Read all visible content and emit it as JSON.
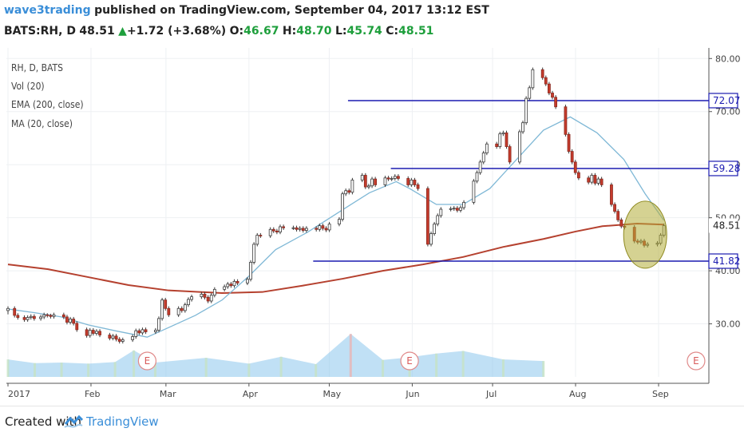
{
  "header": {
    "author": "wave3trading",
    "published": "published on TradingView.com, September 04, 2017 13:12 EST",
    "symbol": "BATS:RH, D",
    "last": "48.51",
    "arrow": "▲",
    "change": "+1.72 (+3.68%)",
    "o_label": "O:",
    "o_val": "46.67",
    "h_label": "H:",
    "h_val": "48.70",
    "l_label": "L:",
    "l_val": "45.74",
    "c_label": "C:",
    "c_val": "48.51"
  },
  "legend": [
    "RH, D, BATS",
    "Vol (20)",
    "EMA (200, close)",
    "MA (20, close)"
  ],
  "footer": {
    "created": "Created with",
    "brand": "TradingView"
  },
  "colors": {
    "up": "#ffffff",
    "down": "#c63b2c",
    "ema": "#b5412f",
    "ma": "#7fb8d6",
    "hline": "#1b1bb0",
    "circle": "#b2ad38",
    "volume": "#8dc6ec"
  },
  "chart_data": {
    "type": "candlestick",
    "ylim": [
      20,
      82
    ],
    "y_ticks": [
      30,
      40,
      50,
      60,
      70,
      80
    ],
    "y_tick_labels": [
      "30.00",
      "40.00",
      "50.00",
      "60.00",
      "70.00",
      "80.00"
    ],
    "x_labels": [
      "2017",
      "Feb",
      "Mar",
      "Apr",
      "May",
      "Jun",
      "Jul",
      "Aug",
      "Sep"
    ],
    "x_label_days": [
      0,
      31,
      59,
      90,
      120,
      151,
      181,
      212,
      243
    ],
    "days_total": 260,
    "price_levels": [
      72.07,
      59.28,
      41.82
    ],
    "price_level_labels": [
      "72.07",
      "59.28",
      "41.82"
    ],
    "last_price": 48.51,
    "last_price_label": "48.51",
    "earnings_label": "E",
    "earnings_days": [
      52,
      150,
      257
    ],
    "ema200": [
      [
        0,
        41.2
      ],
      [
        15,
        40.3
      ],
      [
        30,
        38.8
      ],
      [
        45,
        37.3
      ],
      [
        60,
        36.3
      ],
      [
        80,
        35.8
      ],
      [
        95,
        36.0
      ],
      [
        110,
        37.2
      ],
      [
        125,
        38.5
      ],
      [
        140,
        40.0
      ],
      [
        155,
        41.2
      ],
      [
        170,
        42.6
      ],
      [
        185,
        44.5
      ],
      [
        200,
        46.0
      ],
      [
        212,
        47.4
      ],
      [
        222,
        48.4
      ],
      [
        235,
        48.9
      ],
      [
        245,
        48.7
      ]
    ],
    "ma20": [
      [
        0,
        32.8
      ],
      [
        10,
        32.1
      ],
      [
        20,
        31.3
      ],
      [
        30,
        29.8
      ],
      [
        40,
        28.7
      ],
      [
        52,
        27.5
      ],
      [
        60,
        29.3
      ],
      [
        70,
        31.6
      ],
      [
        80,
        34.5
      ],
      [
        90,
        39.0
      ],
      [
        100,
        44.0
      ],
      [
        112,
        47.3
      ],
      [
        125,
        51.5
      ],
      [
        135,
        54.7
      ],
      [
        145,
        56.8
      ],
      [
        150,
        55.5
      ],
      [
        160,
        52.5
      ],
      [
        170,
        52.5
      ],
      [
        180,
        55.5
      ],
      [
        190,
        61.0
      ],
      [
        200,
        66.5
      ],
      [
        210,
        69.0
      ],
      [
        220,
        66.0
      ],
      [
        230,
        61.0
      ],
      [
        238,
        54.5
      ],
      [
        245,
        49.5
      ]
    ],
    "candles": [
      [
        0,
        32.5,
        32.9,
        31.8,
        33.3
      ],
      [
        2,
        32.9,
        31.6,
        31.2,
        33.3
      ],
      [
        3,
        31.6,
        31.2,
        30.8,
        32.0
      ],
      [
        5,
        31.2,
        30.8,
        30.4,
        31.6
      ],
      [
        6,
        30.8,
        31.2,
        30.4,
        31.6
      ],
      [
        7,
        31.2,
        31.4,
        30.8,
        31.8
      ],
      [
        8,
        31.4,
        31.0,
        30.6,
        31.8
      ],
      [
        10,
        31.0,
        31.3,
        30.6,
        31.7
      ],
      [
        11,
        31.3,
        31.7,
        30.9,
        32.1
      ],
      [
        12,
        31.7,
        31.6,
        31.2,
        32.0
      ],
      [
        13,
        31.6,
        31.4,
        31.0,
        31.9
      ],
      [
        14,
        31.4,
        31.7,
        31.0,
        32.1
      ],
      [
        17,
        31.7,
        31.3,
        30.9,
        32.1
      ],
      [
        18,
        31.3,
        30.3,
        29.9,
        31.7
      ],
      [
        19,
        30.3,
        30.9,
        29.9,
        31.3
      ],
      [
        20,
        30.9,
        30.1,
        29.7,
        31.3
      ],
      [
        21,
        30.1,
        28.9,
        28.5,
        30.5
      ],
      [
        24,
        28.9,
        27.8,
        27.4,
        29.3
      ],
      [
        25,
        27.8,
        28.8,
        27.4,
        29.2
      ],
      [
        26,
        28.8,
        28.2,
        27.8,
        29.2
      ],
      [
        27,
        28.2,
        28.6,
        27.8,
        29.0
      ],
      [
        28,
        28.6,
        27.9,
        27.5,
        29.0
      ],
      [
        31,
        27.9,
        27.3,
        26.9,
        28.3
      ],
      [
        32,
        27.3,
        27.7,
        26.9,
        28.1
      ],
      [
        33,
        27.7,
        27.1,
        26.7,
        28.1
      ],
      [
        34,
        27.1,
        26.7,
        26.3,
        27.5
      ],
      [
        35,
        26.7,
        27.0,
        26.3,
        27.4
      ],
      [
        38,
        27.0,
        27.6,
        26.6,
        28.0
      ],
      [
        39,
        27.6,
        28.7,
        27.2,
        29.1
      ],
      [
        40,
        28.7,
        28.3,
        27.9,
        29.1
      ],
      [
        41,
        28.3,
        28.9,
        27.9,
        29.3
      ],
      [
        42,
        28.9,
        28.5,
        28.1,
        29.3
      ],
      [
        45,
        28.5,
        28.8,
        28.1,
        29.2
      ],
      [
        46,
        28.8,
        31.0,
        28.4,
        31.4
      ],
      [
        47,
        31.0,
        34.5,
        30.6,
        34.9
      ],
      [
        48,
        34.5,
        32.9,
        32.5,
        34.9
      ],
      [
        49,
        32.9,
        31.7,
        31.3,
        33.3
      ],
      [
        52,
        31.7,
        32.9,
        31.3,
        33.3
      ],
      [
        53,
        32.9,
        32.5,
        32.1,
        33.3
      ],
      [
        54,
        32.5,
        33.6,
        32.1,
        34.0
      ],
      [
        55,
        33.6,
        34.6,
        33.2,
        35.0
      ],
      [
        56,
        34.6,
        35.1,
        34.2,
        35.5
      ],
      [
        59,
        35.1,
        35.6,
        34.7,
        36.0
      ],
      [
        60,
        35.6,
        35.0,
        34.6,
        36.0
      ],
      [
        61,
        35.0,
        34.3,
        33.9,
        35.4
      ],
      [
        62,
        34.3,
        35.4,
        33.9,
        35.8
      ],
      [
        63,
        35.4,
        36.5,
        35.0,
        36.9
      ],
      [
        66,
        36.5,
        37.0,
        36.1,
        37.4
      ],
      [
        67,
        37.0,
        37.5,
        36.6,
        37.9
      ],
      [
        68,
        37.5,
        37.2,
        36.8,
        37.9
      ],
      [
        69,
        37.2,
        38.0,
        36.8,
        38.4
      ],
      [
        70,
        38.0,
        37.7,
        37.3,
        38.4
      ],
      [
        73,
        37.7,
        38.4,
        37.3,
        38.8
      ],
      [
        74,
        38.4,
        41.6,
        38.0,
        42.0
      ],
      [
        75,
        41.6,
        45.0,
        41.2,
        45.4
      ],
      [
        76,
        45.0,
        46.7,
        44.6,
        47.1
      ],
      [
        77,
        46.7,
        46.6,
        46.2,
        47.1
      ],
      [
        80,
        46.6,
        47.8,
        46.2,
        48.2
      ],
      [
        81,
        47.8,
        47.5,
        47.1,
        48.2
      ],
      [
        82,
        47.5,
        47.3,
        46.9,
        47.9
      ],
      [
        83,
        47.3,
        48.3,
        46.9,
        48.7
      ],
      [
        84,
        48.3,
        48.1,
        47.7,
        48.7
      ],
      [
        87,
        48.1,
        48.1,
        47.7,
        48.5
      ],
      [
        88,
        48.1,
        47.8,
        47.4,
        48.5
      ],
      [
        89,
        47.8,
        48.0,
        47.4,
        48.4
      ],
      [
        90,
        48.0,
        47.6,
        47.2,
        48.4
      ],
      [
        91,
        47.6,
        48.0,
        47.2,
        48.4
      ],
      [
        94,
        48.0,
        47.8,
        47.4,
        48.4
      ],
      [
        95,
        47.8,
        48.5,
        47.4,
        48.9
      ],
      [
        96,
        48.5,
        48.0,
        47.6,
        48.9
      ],
      [
        97,
        48.0,
        47.7,
        47.3,
        48.4
      ],
      [
        98,
        47.7,
        48.8,
        47.3,
        49.2
      ],
      [
        101,
        48.8,
        49.7,
        48.4,
        50.1
      ],
      [
        102,
        49.7,
        54.5,
        49.3,
        54.9
      ],
      [
        103,
        54.5,
        55.1,
        54.1,
        55.5
      ],
      [
        104,
        55.1,
        54.8,
        54.4,
        55.5
      ],
      [
        105,
        54.8,
        57.1,
        54.4,
        57.5
      ],
      [
        108,
        57.1,
        58.0,
        56.7,
        58.4
      ],
      [
        109,
        58.0,
        55.8,
        55.4,
        58.4
      ],
      [
        110,
        55.8,
        56.0,
        55.4,
        56.4
      ],
      [
        111,
        56.0,
        57.3,
        55.6,
        57.7
      ],
      [
        112,
        57.3,
        56.2,
        55.8,
        57.7
      ],
      [
        115,
        56.2,
        57.5,
        55.8,
        57.9
      ],
      [
        116,
        57.5,
        57.3,
        56.9,
        57.9
      ],
      [
        117,
        57.3,
        57.4,
        56.9,
        57.8
      ],
      [
        118,
        57.4,
        57.8,
        57.0,
        58.2
      ],
      [
        119,
        57.8,
        57.4,
        57.0,
        58.2
      ],
      [
        122,
        57.4,
        56.2,
        55.8,
        57.8
      ],
      [
        123,
        56.2,
        57.1,
        55.8,
        57.5
      ],
      [
        124,
        57.1,
        56.2,
        55.8,
        57.5
      ],
      [
        125,
        56.2,
        55.5,
        55.1,
        56.6
      ],
      [
        128,
        55.5,
        45.0,
        44.6,
        55.9
      ],
      [
        129,
        45.0,
        47.0,
        44.6,
        47.4
      ],
      [
        130,
        47.0,
        48.8,
        46.6,
        49.2
      ],
      [
        131,
        48.8,
        50.4,
        48.4,
        50.8
      ],
      [
        132,
        50.4,
        51.6,
        50.0,
        52.0
      ],
      [
        135,
        51.6,
        51.7,
        51.2,
        52.1
      ],
      [
        136,
        51.7,
        51.8,
        51.3,
        52.2
      ],
      [
        137,
        51.8,
        51.4,
        51.0,
        52.2
      ],
      [
        138,
        51.4,
        51.9,
        51.0,
        52.3
      ],
      [
        139,
        51.9,
        52.9,
        51.5,
        53.3
      ],
      [
        142,
        52.9,
        56.9,
        52.5,
        57.3
      ],
      [
        143,
        56.9,
        58.5,
        56.5,
        58.9
      ],
      [
        144,
        58.5,
        60.5,
        58.1,
        60.9
      ],
      [
        145,
        60.5,
        62.2,
        60.1,
        62.6
      ],
      [
        146,
        62.2,
        63.9,
        61.8,
        64.3
      ],
      [
        149,
        63.9,
        63.4,
        63.0,
        64.3
      ],
      [
        150,
        63.4,
        65.8,
        63.0,
        66.2
      ],
      [
        151,
        65.8,
        66.0,
        65.4,
        66.4
      ],
      [
        152,
        66.0,
        63.4,
        63.0,
        66.4
      ],
      [
        153,
        63.4,
        60.5,
        60.1,
        63.8
      ],
      [
        156,
        60.5,
        66.2,
        60.1,
        66.6
      ],
      [
        157,
        66.2,
        67.9,
        65.8,
        68.3
      ],
      [
        158,
        67.9,
        72.5,
        67.5,
        72.9
      ],
      [
        159,
        72.5,
        74.5,
        72.1,
        74.9
      ],
      [
        160,
        74.5,
        77.9,
        74.1,
        78.3
      ],
      [
        163,
        77.9,
        76.4,
        76.0,
        78.3
      ],
      [
        164,
        76.4,
        75.2,
        74.8,
        76.8
      ],
      [
        165,
        75.2,
        73.5,
        73.1,
        75.6
      ],
      [
        166,
        73.5,
        72.7,
        72.3,
        73.9
      ],
      [
        167,
        72.7,
        70.9,
        70.5,
        73.1
      ],
      [
        170,
        70.9,
        65.7,
        65.3,
        71.3
      ],
      [
        171,
        65.7,
        62.5,
        62.1,
        66.1
      ],
      [
        172,
        62.5,
        60.5,
        60.1,
        62.9
      ],
      [
        173,
        60.5,
        58.5,
        58.1,
        60.9
      ],
      [
        174,
        58.5,
        57.5,
        57.1,
        58.9
      ],
      [
        177,
        57.5,
        56.7,
        56.3,
        57.9
      ],
      [
        178,
        56.7,
        58.0,
        56.3,
        58.4
      ],
      [
        179,
        58.0,
        56.5,
        56.1,
        58.4
      ],
      [
        180,
        56.5,
        57.3,
        56.1,
        57.7
      ],
      [
        181,
        57.3,
        56.2,
        55.8,
        57.7
      ],
      [
        184,
        56.2,
        52.5,
        52.1,
        56.6
      ],
      [
        185,
        52.5,
        51.2,
        50.8,
        52.9
      ],
      [
        186,
        51.2,
        49.6,
        49.2,
        51.6
      ],
      [
        187,
        49.6,
        48.4,
        48.0,
        50.0
      ],
      [
        188,
        48.4,
        48.2,
        47.8,
        48.8
      ],
      [
        191,
        48.2,
        45.6,
        45.2,
        48.6
      ],
      [
        192,
        45.6,
        45.4,
        45.0,
        46.0
      ],
      [
        193,
        45.4,
        45.6,
        45.0,
        46.0
      ],
      [
        194,
        45.6,
        44.8,
        44.4,
        46.0
      ],
      [
        195,
        44.8,
        45.0,
        44.4,
        45.4
      ],
      [
        198,
        45.0,
        45.2,
        44.6,
        45.6
      ],
      [
        199,
        45.2,
        46.7,
        44.8,
        47.1
      ],
      [
        200,
        46.7,
        48.5,
        46.3,
        48.9
      ]
    ],
    "volume": [
      [
        0,
        23.3
      ],
      [
        10,
        22.6
      ],
      [
        20,
        22.7
      ],
      [
        30,
        22.5
      ],
      [
        40,
        22.8
      ],
      [
        47,
        25.0
      ],
      [
        55,
        22.7
      ],
      [
        74,
        23.6
      ],
      [
        90,
        22.5
      ],
      [
        102,
        23.8
      ],
      [
        115,
        22.4
      ],
      [
        128,
        28.1
      ],
      [
        140,
        23.2
      ],
      [
        150,
        23.7
      ],
      [
        160,
        24.4
      ],
      [
        170,
        24.9
      ],
      [
        185,
        23.3
      ],
      [
        200,
        23.0
      ]
    ]
  }
}
